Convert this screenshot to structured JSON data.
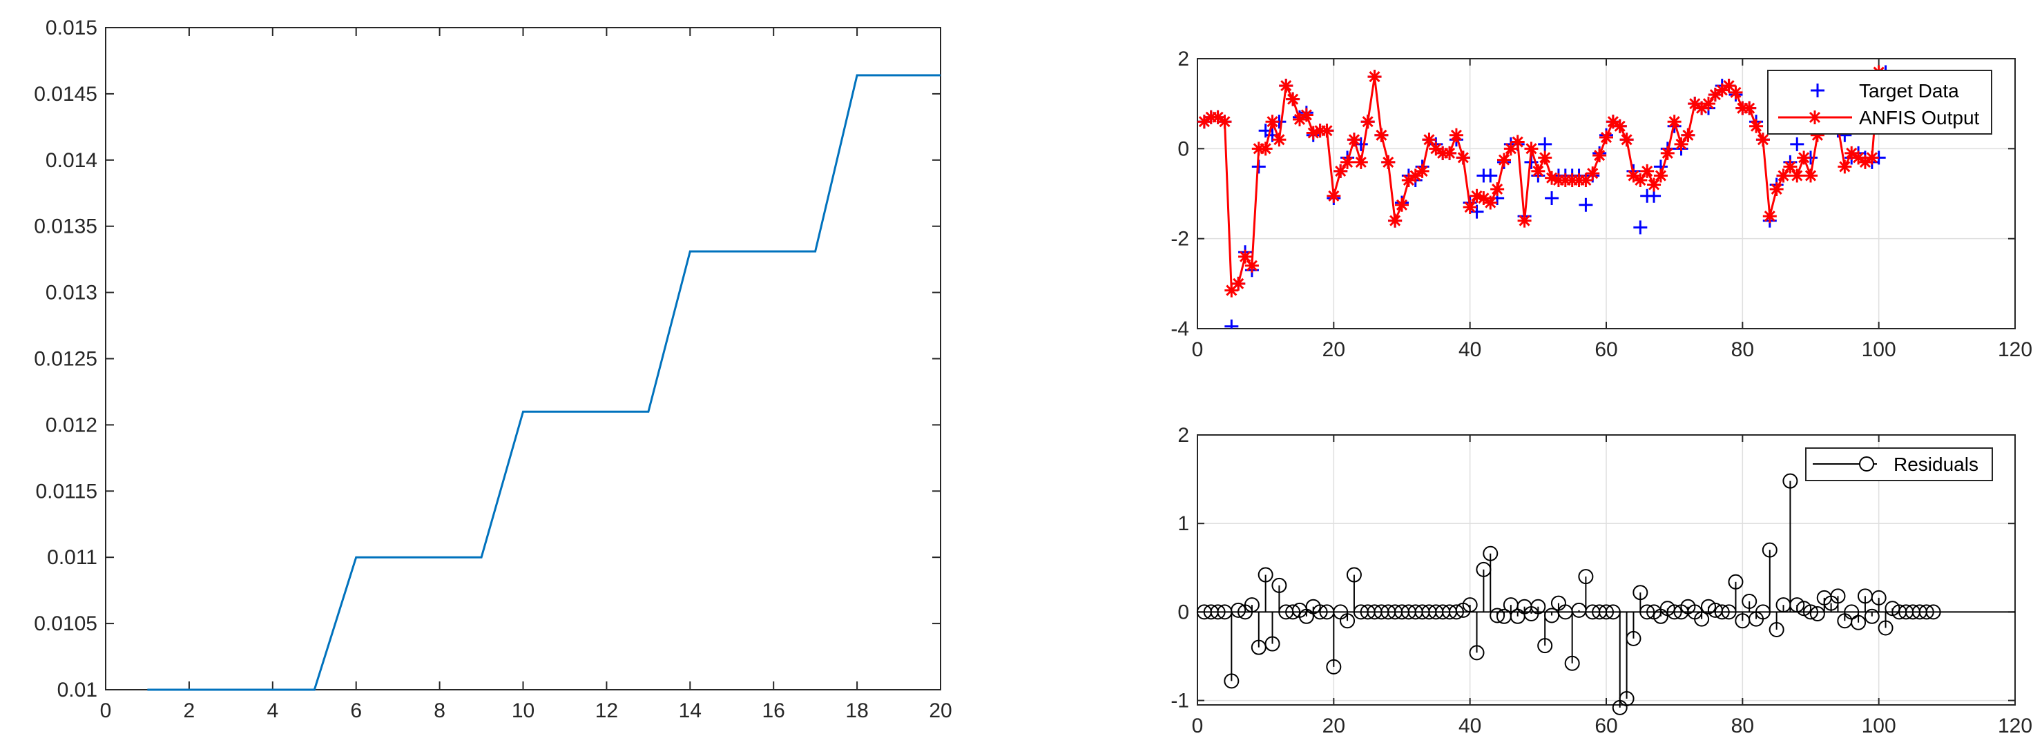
{
  "colors": {
    "step_line": "#0072BD",
    "target": "#0000FF",
    "anfis": "#FF0000",
    "residual": "#000000",
    "axis": "#262626",
    "grid": "#DFDFDF"
  },
  "chart_data": [
    {
      "type": "line",
      "title": "",
      "xlabel": "",
      "ylabel": "",
      "xlim": [
        0,
        20
      ],
      "ylim": [
        0.01,
        0.015
      ],
      "grid": false,
      "xticks": [
        "0",
        "2",
        "4",
        "6",
        "8",
        "10",
        "12",
        "14",
        "16",
        "18",
        "20"
      ],
      "yticks": [
        "0.01",
        "0.0105",
        "0.011",
        "0.0115",
        "0.012",
        "0.0125",
        "0.013",
        "0.0135",
        "0.014",
        "0.0145",
        "0.015"
      ],
      "series": [
        {
          "x": [
            1,
            2,
            3,
            4,
            5,
            6,
            7,
            8,
            9,
            10,
            11,
            12,
            13,
            14,
            15,
            16,
            17,
            18,
            19,
            20
          ],
          "y": [
            0.01,
            0.01,
            0.01,
            0.01,
            0.01,
            0.011,
            0.011,
            0.011,
            0.011,
            0.0121,
            0.0121,
            0.0121,
            0.0121,
            0.01331,
            0.01331,
            0.01331,
            0.01331,
            0.01464,
            0.01464,
            0.01464
          ]
        }
      ]
    },
    {
      "type": "line",
      "title": "",
      "xlabel": "",
      "ylabel": "",
      "xlim": [
        0,
        120
      ],
      "ylim": [
        -4,
        2
      ],
      "grid": true,
      "legend_position": "top-right",
      "xticks": [
        "0",
        "20",
        "40",
        "60",
        "80",
        "100",
        "120"
      ],
      "yticks": [
        "-4",
        "-2",
        "0",
        "2"
      ],
      "x": [
        1,
        2,
        3,
        4,
        5,
        6,
        7,
        8,
        9,
        10,
        11,
        12,
        13,
        14,
        15,
        16,
        17,
        18,
        19,
        20,
        21,
        22,
        23,
        24,
        25,
        26,
        27,
        28,
        29,
        30,
        31,
        32,
        33,
        34,
        35,
        36,
        37,
        38,
        39,
        40,
        41,
        42,
        43,
        44,
        45,
        46,
        47,
        48,
        49,
        50,
        51,
        52,
        53,
        54,
        55,
        56,
        57,
        58,
        59,
        60,
        61,
        62,
        63,
        64,
        65,
        66,
        67,
        68,
        69,
        70,
        71,
        72,
        73,
        74,
        75,
        76,
        77,
        78,
        79,
        80,
        81,
        82,
        83,
        84,
        85,
        86,
        87,
        88,
        89,
        90,
        91,
        92,
        93,
        94,
        95,
        96,
        97,
        98,
        99,
        100,
        101,
        102,
        103,
        104,
        105,
        106,
        107,
        108
      ],
      "series": [
        {
          "name": "Target Data",
          "marker": "plus",
          "values": [
            0.6,
            0.7,
            0.7,
            0.6,
            -3.95,
            -3.0,
            -2.3,
            -2.7,
            -0.4,
            0.4,
            0.3,
            0.6,
            1.4,
            1.1,
            0.7,
            0.8,
            0.3,
            0.4,
            0.4,
            -1.1,
            -0.5,
            -0.2,
            0.2,
            0.1,
            0.6,
            1.6,
            0.3,
            -0.3,
            -1.6,
            -1.2,
            -0.6,
            -0.7,
            -0.4,
            0.2,
            0.1,
            -0.1,
            -0.1,
            0.2,
            -0.2,
            -1.2,
            -1.4,
            -0.6,
            -0.6,
            -1.1,
            -0.3,
            0.1,
            0.1,
            -1.5,
            -0.3,
            -0.6,
            0.1,
            -1.1,
            -0.6,
            -0.6,
            -0.6,
            -0.6,
            -1.25,
            -0.6,
            -0.1,
            0.3,
            0.6,
            0.5,
            0.2,
            -0.5,
            -1.75,
            -1.05,
            -1.05,
            -0.4,
            0.0,
            0.5,
            0.0,
            0.3,
            1.0,
            0.9,
            0.9,
            1.2,
            1.4,
            1.4,
            1.2,
            0.9,
            0.9,
            0.6,
            0.2,
            -1.6,
            -0.8,
            -0.6,
            -0.3,
            0.1,
            0.5,
            -0.2,
            0.5,
            1.0,
            0.6,
            0.4,
            0.3,
            -0.2,
            -0.1,
            -0.2,
            -0.3,
            -0.2,
            1.7,
            1.5,
            1.3,
            1.2,
            1.1,
            1.0,
            1.0,
            0.9
          ]
        },
        {
          "name": "ANFIS Output",
          "marker": "star",
          "values": [
            0.6,
            0.7,
            0.7,
            0.6,
            -3.15,
            -3.0,
            -2.4,
            -2.6,
            0.0,
            0.0,
            0.6,
            0.2,
            1.4,
            1.1,
            0.65,
            0.75,
            0.35,
            0.4,
            0.4,
            -1.05,
            -0.5,
            -0.3,
            0.2,
            -0.3,
            0.6,
            1.6,
            0.3,
            -0.3,
            -1.6,
            -1.25,
            -0.7,
            -0.6,
            -0.5,
            0.2,
            0.0,
            -0.1,
            -0.1,
            0.3,
            -0.2,
            -1.3,
            -1.05,
            -1.1,
            -1.2,
            -0.9,
            -0.25,
            0.0,
            0.15,
            -1.6,
            0.0,
            -0.5,
            -0.2,
            -0.65,
            -0.7,
            -0.7,
            -0.7,
            -0.7,
            -0.7,
            -0.55,
            -0.15,
            0.25,
            0.6,
            0.5,
            0.2,
            -0.6,
            -0.7,
            -0.5,
            -0.8,
            -0.6,
            -0.1,
            0.6,
            0.1,
            0.3,
            1.0,
            0.9,
            1.0,
            1.2,
            1.3,
            1.4,
            1.25,
            0.9,
            0.9,
            0.5,
            0.2,
            -1.5,
            -0.9,
            -0.6,
            -0.4,
            -0.6,
            -0.2,
            -0.6,
            0.3,
            0.8,
            0.5,
            0.5,
            -0.4,
            -0.1,
            -0.2,
            -0.3,
            -0.2,
            1.7,
            1.5,
            1.3,
            1.2,
            1.1,
            1.0,
            1.0,
            0.9,
            0.8
          ]
        }
      ]
    },
    {
      "type": "stem",
      "title": "",
      "xlabel": "",
      "ylabel": "",
      "xlim": [
        0,
        120
      ],
      "ylim": [
        -1.05,
        2
      ],
      "grid": true,
      "legend_position": "top-right",
      "xticks": [
        "0",
        "20",
        "40",
        "60",
        "80",
        "100",
        "120"
      ],
      "yticks": [
        "-1",
        "0",
        "1",
        "2"
      ],
      "series": [
        {
          "name": "Residuals",
          "x": [
            1,
            2,
            3,
            4,
            5,
            6,
            7,
            8,
            9,
            10,
            11,
            12,
            13,
            14,
            15,
            16,
            17,
            18,
            19,
            20,
            21,
            22,
            23,
            24,
            25,
            26,
            27,
            28,
            29,
            30,
            31,
            32,
            33,
            34,
            35,
            36,
            37,
            38,
            39,
            40,
            41,
            42,
            43,
            44,
            45,
            46,
            47,
            48,
            49,
            50,
            51,
            52,
            53,
            54,
            55,
            56,
            57,
            58,
            59,
            60,
            61,
            62,
            63,
            64,
            65,
            66,
            67,
            68,
            69,
            70,
            71,
            72,
            73,
            74,
            75,
            76,
            77,
            78,
            79,
            80,
            81,
            82,
            83,
            84,
            85,
            86,
            87,
            88,
            89,
            90,
            91,
            92,
            93,
            94,
            95,
            96,
            97,
            98,
            99,
            100,
            101,
            102,
            103,
            104,
            105,
            106,
            107,
            108
          ],
          "values": [
            0.0,
            0.0,
            0.0,
            0.0,
            -0.78,
            0.02,
            0.0,
            0.08,
            -0.4,
            0.42,
            -0.36,
            0.3,
            0.0,
            0.0,
            0.02,
            -0.05,
            0.06,
            0.0,
            0.0,
            -0.62,
            0.0,
            -0.1,
            0.42,
            0.0,
            0.0,
            0.0,
            0.0,
            0.0,
            0.0,
            0.0,
            0.0,
            0.0,
            0.0,
            0.0,
            0.0,
            0.0,
            0.0,
            0.0,
            0.02,
            0.08,
            -0.46,
            0.48,
            0.66,
            -0.04,
            -0.05,
            0.08,
            -0.05,
            0.06,
            -0.02,
            0.06,
            -0.38,
            -0.04,
            0.1,
            0.0,
            -0.58,
            0.02,
            0.4,
            0.0,
            0.0,
            0.0,
            0.0,
            -1.08,
            -0.98,
            -0.3,
            0.22,
            0.0,
            0.0,
            -0.05,
            0.04,
            0.0,
            0.0,
            0.06,
            0.0,
            -0.08,
            0.06,
            0.02,
            0.0,
            0.0,
            0.34,
            -0.1,
            0.12,
            -0.08,
            0.0,
            0.7,
            -0.2,
            0.08,
            1.48,
            0.08,
            0.04,
            0.0,
            -0.02,
            0.16,
            0.1,
            0.18,
            -0.1,
            0.0,
            -0.12,
            0.18,
            -0.05,
            0.16,
            -0.18,
            0.04,
            0.0,
            0.0,
            0.0,
            0.0,
            0.0,
            0.0
          ]
        }
      ]
    }
  ]
}
